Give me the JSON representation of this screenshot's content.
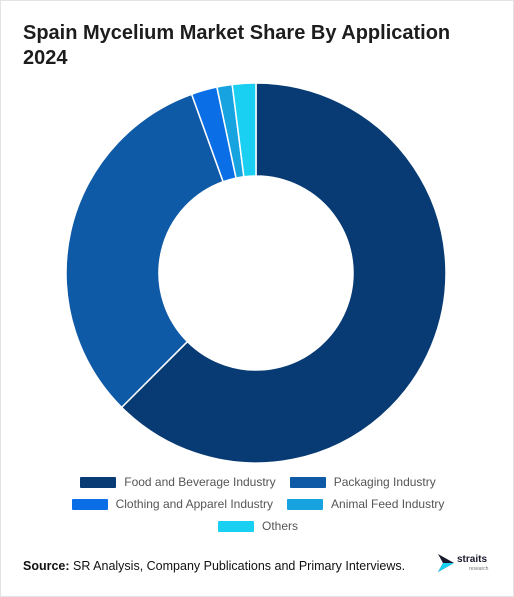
{
  "title": "Spain Mycelium Market Share By Application 2024",
  "chart_data": {
    "type": "pie",
    "donut": true,
    "title": "Spain Mycelium Market Share By Application 2024",
    "unit": "%",
    "categories": [
      "Food and Beverage Industry",
      "Packaging Industry",
      "Clothing and Apparel Industry",
      "Animal Feed Industry",
      "Others"
    ],
    "values": [
      62.5,
      32.0,
      2.2,
      1.3,
      2.0
    ],
    "colors": [
      "#083b73",
      "#0f5aa6",
      "#0a6fe6",
      "#17a3e0",
      "#1ad0f2"
    ],
    "legend_position": "bottom"
  },
  "legend": {
    "rows": [
      [
        {
          "label": "Food and Beverage Industry",
          "color": "#083b73"
        },
        {
          "label": "Packaging Industry",
          "color": "#0f5aa6"
        }
      ],
      [
        {
          "label": "Clothing and Apparel Industry",
          "color": "#0a6fe6"
        },
        {
          "label": "Animal Feed Industry",
          "color": "#17a3e0"
        }
      ],
      [
        {
          "label": "Others",
          "color": "#1ad0f2"
        }
      ]
    ]
  },
  "footer": {
    "source_label": "Source:",
    "source_text": " SR Analysis, Company Publications and Primary Interviews.",
    "logo_text": "straits",
    "logo_sub": "research"
  }
}
